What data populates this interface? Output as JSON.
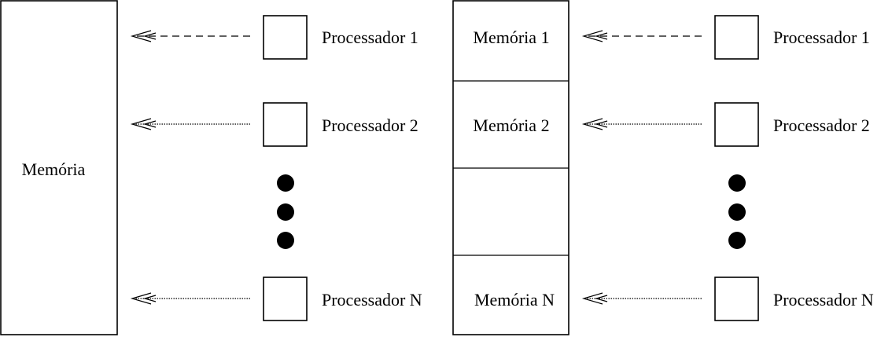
{
  "left": {
    "memory_label": "Memória",
    "processors": [
      {
        "label": "Processador 1",
        "link": "dashed"
      },
      {
        "label": "Processador 2",
        "link": "dotted"
      },
      {
        "label": "Processador N",
        "link": "dotted"
      }
    ]
  },
  "right": {
    "memories": [
      {
        "label": "Memória 1"
      },
      {
        "label": "Memória 2"
      },
      {
        "label": ""
      },
      {
        "label": "Memória N"
      }
    ],
    "processors": [
      {
        "label": "Processador 1",
        "link": "dashed"
      },
      {
        "label": "Processador 2",
        "link": "dotted"
      },
      {
        "label": "Processador N",
        "link": "dotted"
      }
    ]
  },
  "colors": {
    "stroke": "#000000",
    "background": "#ffffff"
  }
}
